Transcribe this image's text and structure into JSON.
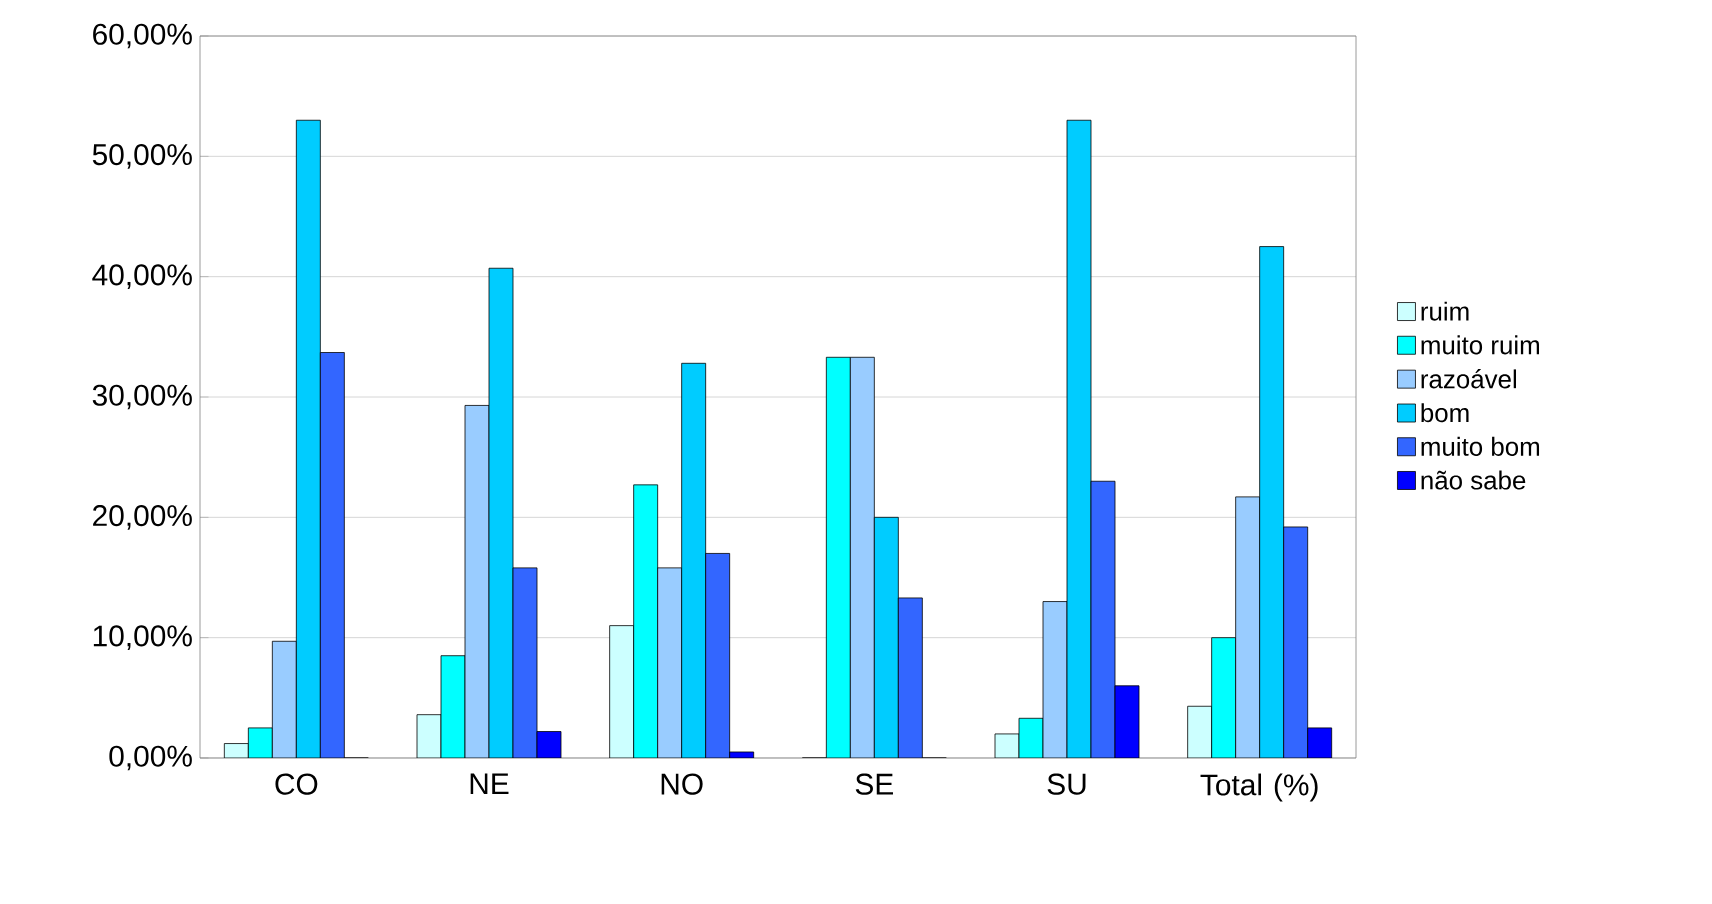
{
  "chart_data": {
    "type": "bar",
    "categories": [
      "CO",
      "NE",
      "NO",
      "SE",
      "SU",
      "Total (%)"
    ],
    "series": [
      {
        "name": "ruim",
        "color": "#ccffff",
        "values": [
          1.2,
          3.6,
          11,
          0,
          2,
          4.3
        ]
      },
      {
        "name": "muito ruim",
        "color": "#00ffff",
        "values": [
          2.5,
          8.5,
          22.7,
          33.3,
          3.3,
          10
        ]
      },
      {
        "name": "razoável",
        "color": "#99ccff",
        "values": [
          9.7,
          29.3,
          15.8,
          33.3,
          13,
          21.7
        ]
      },
      {
        "name": "bom",
        "color": "#00ccff",
        "values": [
          53,
          40.7,
          32.8,
          20,
          53,
          42.5
        ]
      },
      {
        "name": "muito bom",
        "color": "#3366ff",
        "values": [
          33.7,
          15.8,
          17,
          13.3,
          23,
          19.2
        ]
      },
      {
        "name": "não sabe",
        "color": "#0000ff",
        "values": [
          0,
          2.2,
          0.5,
          0,
          6,
          2.5
        ]
      }
    ],
    "ylim": [
      0,
      60
    ],
    "yticks": [
      {
        "value": 0,
        "label": "0,00%"
      },
      {
        "value": 10,
        "label": "10,00%"
      },
      {
        "value": 20,
        "label": "20,00%"
      },
      {
        "value": 30,
        "label": "30,00%"
      },
      {
        "value": 40,
        "label": "40,00%"
      },
      {
        "value": 50,
        "label": "50,00%"
      },
      {
        "value": 60,
        "label": "60,00%"
      }
    ],
    "grid": "y",
    "legend": "right"
  }
}
